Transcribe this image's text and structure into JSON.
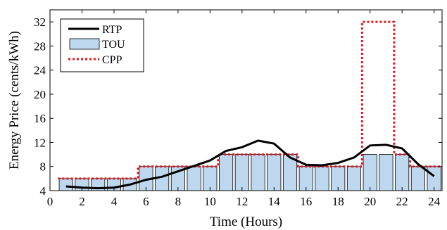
{
  "chart_data": {
    "type": "bar",
    "xlabel": "Time (Hours)",
    "ylabel": "Energy Price (cents/kWh)",
    "xlim": [
      0,
      24.5
    ],
    "ylim": [
      4,
      34
    ],
    "xticks": [
      0,
      2,
      4,
      6,
      8,
      10,
      12,
      14,
      16,
      18,
      20,
      22,
      24
    ],
    "yticks": [
      4,
      8,
      12,
      16,
      20,
      24,
      28,
      32
    ],
    "grid": false,
    "legend": {
      "placement": "top-left"
    },
    "series": [
      {
        "name": "TOU",
        "kind": "bar",
        "color": "#bdd7ee",
        "x": [
          1,
          2,
          3,
          4,
          5,
          6,
          7,
          8,
          9,
          10,
          11,
          12,
          13,
          14,
          15,
          16,
          17,
          18,
          19,
          20,
          21,
          22,
          23,
          24
        ],
        "values": [
          6,
          6,
          6,
          6,
          6,
          8,
          8,
          8,
          8,
          8,
          10,
          10,
          10,
          10,
          10,
          8,
          8,
          8,
          8,
          10,
          10,
          10,
          8,
          8
        ]
      },
      {
        "name": "RTP",
        "kind": "line",
        "color": "#000000",
        "style": "solid",
        "x": [
          1,
          2,
          3,
          4,
          5,
          6,
          7,
          8,
          9,
          10,
          11,
          12,
          13,
          14,
          15,
          16,
          17,
          18,
          19,
          20,
          21,
          22,
          23,
          24
        ],
        "values": [
          4.7,
          4.5,
          4.4,
          4.5,
          5.0,
          5.8,
          6.3,
          7.2,
          8.1,
          9.0,
          10.6,
          11.2,
          12.3,
          11.8,
          9.5,
          8.3,
          8.2,
          8.6,
          9.5,
          11.5,
          11.6,
          11.0,
          8.4,
          6.4
        ]
      },
      {
        "name": "CPP",
        "kind": "step",
        "color": "#e8141c",
        "style": "dotted",
        "x": [
          1,
          2,
          3,
          4,
          5,
          6,
          7,
          8,
          9,
          10,
          11,
          12,
          13,
          14,
          15,
          16,
          17,
          18,
          19,
          20,
          21,
          22,
          23,
          24
        ],
        "values": [
          6,
          6,
          6,
          6,
          6,
          8,
          8,
          8,
          8,
          8,
          10,
          10,
          10,
          10,
          10,
          8,
          8,
          8,
          8,
          32,
          32,
          10,
          8,
          8
        ]
      }
    ]
  }
}
